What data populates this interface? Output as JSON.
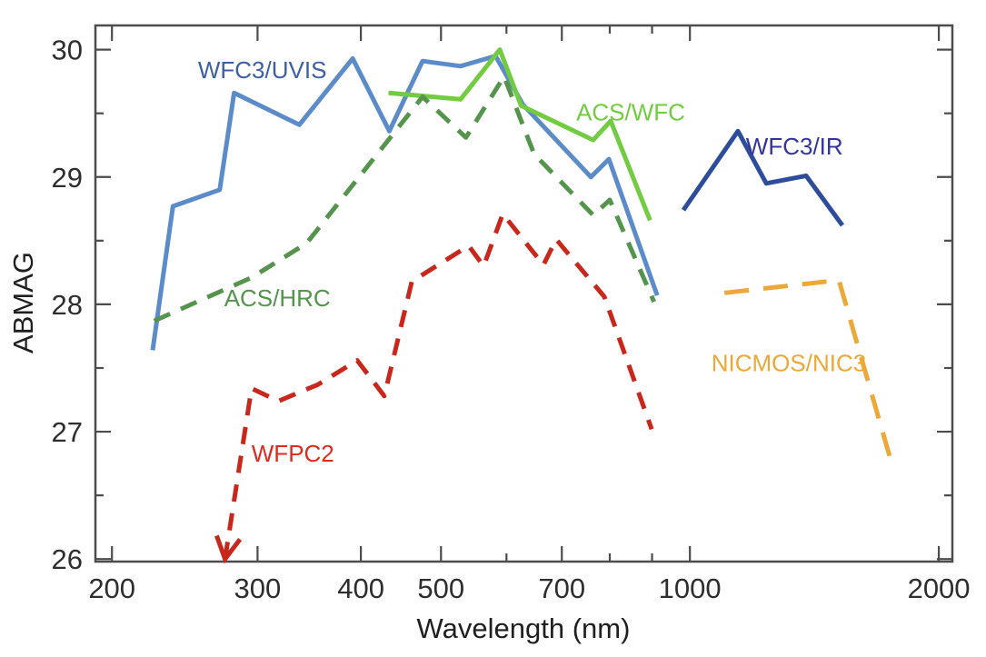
{
  "chart_data": {
    "type": "line",
    "title": "",
    "xlabel": "Wavelength (nm)",
    "ylabel": "ABMAG",
    "x_scale": "log",
    "grid": false,
    "legend_position": "inline-labels",
    "xlim": [
      191,
      2077
    ],
    "ylim": [
      25.98,
      30.19
    ],
    "x_ticks_major": [
      200,
      300,
      400,
      500,
      700,
      1000,
      2000
    ],
    "x_ticks_minor": [
      600,
      800,
      900
    ],
    "y_ticks_major": [
      26,
      27,
      28,
      29,
      30
    ],
    "y_ticks_minor": [
      26.5,
      27.5,
      28.5,
      29.5
    ],
    "series": [
      {
        "name": "WFC3/UVIS",
        "style": "solid",
        "color": "#5b8cc9",
        "label_color": "#3d5fa5",
        "label_pos": {
          "wl": 304,
          "mag": 29.84
        },
        "points": [
          [
            224,
            27.64
          ],
          [
            237,
            28.77
          ],
          [
            270,
            28.9
          ],
          [
            281,
            29.66
          ],
          [
            337,
            29.41
          ],
          [
            391,
            29.93
          ],
          [
            433,
            29.36
          ],
          [
            475,
            29.91
          ],
          [
            528,
            29.87
          ],
          [
            582,
            29.95
          ],
          [
            628,
            29.57
          ],
          [
            759,
            29.0
          ],
          [
            798,
            29.14
          ],
          [
            913,
            28.07
          ]
        ]
      },
      {
        "name": "ACS/WFC",
        "style": "solid",
        "color": "#72cb40",
        "label_color": "#72cb40",
        "label_pos": {
          "wl": 848,
          "mag": 29.51
        },
        "points": [
          [
            432,
            29.66
          ],
          [
            528,
            29.61
          ],
          [
            589,
            30.0
          ],
          [
            625,
            29.56
          ],
          [
            764,
            29.29
          ],
          [
            802,
            29.44
          ],
          [
            895,
            28.66
          ]
        ]
      },
      {
        "name": "ACS/HRC",
        "style": "dashed",
        "color": "#55944d",
        "label_color": "#55944d",
        "label_pos": {
          "wl": 317,
          "mag": 28.05
        },
        "points": [
          [
            225,
            27.87
          ],
          [
            295,
            28.21
          ],
          [
            344,
            28.48
          ],
          [
            475,
            29.63
          ],
          [
            536,
            29.31
          ],
          [
            596,
            29.79
          ],
          [
            648,
            29.18
          ],
          [
            764,
            28.7
          ],
          [
            800,
            28.82
          ],
          [
            905,
            28.02
          ]
        ]
      },
      {
        "name": "WFPC2",
        "style": "dashed",
        "color": "#c9261c",
        "label_color": "#dd2c1f",
        "label_pos": {
          "wl": 331,
          "mag": 26.83
        },
        "arrow_start": true,
        "points": [
          [
            274,
            26.0
          ],
          [
            295,
            27.34
          ],
          [
            318,
            27.24
          ],
          [
            355,
            27.37
          ],
          [
            396,
            27.56
          ],
          [
            427,
            27.28
          ],
          [
            461,
            28.18
          ],
          [
            540,
            28.46
          ],
          [
            563,
            28.3
          ],
          [
            594,
            28.71
          ],
          [
            665,
            28.31
          ],
          [
            689,
            28.51
          ],
          [
            788,
            28.06
          ],
          [
            899,
            27.02
          ]
        ]
      },
      {
        "name": "WFC3/IR",
        "style": "solid",
        "color": "#2d4c9c",
        "label_color": "#34349e",
        "label_pos": {
          "wl": 1338,
          "mag": 29.24
        },
        "points": [
          [
            982,
            28.74
          ],
          [
            1143,
            29.36
          ],
          [
            1237,
            28.95
          ],
          [
            1382,
            29.01
          ],
          [
            1529,
            28.62
          ]
        ]
      },
      {
        "name": "NICMOS/NIC3",
        "style": "dashed",
        "color": "#eca838",
        "label_color": "#eca838",
        "label_pos": {
          "wl": 1317,
          "mag": 27.54
        },
        "points": [
          [
            1101,
            28.09
          ],
          [
            1514,
            28.19
          ],
          [
            1758,
            26.73
          ]
        ]
      }
    ]
  }
}
